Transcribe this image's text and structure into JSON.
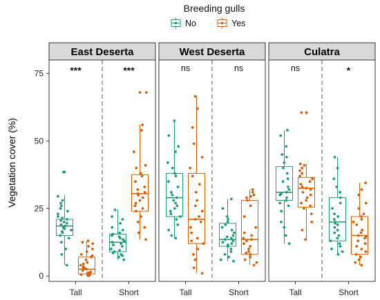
{
  "chart_data": {
    "type": "boxplot",
    "ylabel": "Vegetation cover (%)",
    "ylim": [
      -2,
      80
    ],
    "yticks": [
      0,
      25,
      50,
      75
    ],
    "categories": [
      "Tall",
      "Short"
    ],
    "legend": {
      "title": "Breeding gulls",
      "position": "top",
      "entries": [
        {
          "label": "No",
          "color": "#1b9e77"
        },
        {
          "label": "Yes",
          "color": "#d95f02"
        }
      ]
    },
    "facets": [
      {
        "name": "East Deserta",
        "groups": [
          {
            "category": "Tall",
            "significance": "***",
            "boxes": [
              {
                "series": "No",
                "min": 4,
                "q1": 15,
                "median": 18.5,
                "q3": 21,
                "max": 30,
                "outliers": [
                  38.5
                ],
                "points": [
                  38.5,
                  29.5,
                  28,
                  27,
                  26,
                  25,
                  24,
                  23,
                  22,
                  21.5,
                  21,
                  20.5,
                  20,
                  19.5,
                  19,
                  18.5,
                  18,
                  17.5,
                  17,
                  16.5,
                  16,
                  15,
                  14,
                  12.5,
                  10,
                  8,
                  4
                ]
              },
              {
                "series": "Yes",
                "min": 0,
                "q1": 0.8,
                "median": 2.5,
                "q3": 7,
                "max": 13,
                "outliers": [],
                "points": [
                  13,
                  12.5,
                  12,
                  11,
                  10,
                  9,
                  8,
                  7.5,
                  7,
                  6,
                  5,
                  4.5,
                  4,
                  3.5,
                  3,
                  2.8,
                  2.5,
                  2,
                  1.5,
                  1.2,
                  1,
                  0.8,
                  0.5,
                  0.3,
                  0.1
                ]
              }
            ]
          },
          {
            "category": "Short",
            "significance": "***",
            "boxes": [
              {
                "series": "No",
                "min": 6,
                "q1": 9,
                "median": 12.5,
                "q3": 15.5,
                "max": 24.5,
                "outliers": [],
                "points": [
                  24.5,
                  22,
                  21,
                  19.5,
                  18,
                  17,
                  16,
                  15.5,
                  15,
                  14.5,
                  14,
                  13.5,
                  13,
                  12.5,
                  12,
                  11.5,
                  11,
                  10,
                  9.5,
                  9,
                  8.5,
                  8,
                  7.5,
                  7,
                  6
                ]
              },
              {
                "series": "Yes",
                "min": 13.5,
                "q1": 24,
                "median": 30.5,
                "q3": 37.5,
                "max": 56,
                "outliers": [
                  68
                ],
                "points": [
                  68,
                  56,
                  54,
                  46,
                  41,
                  40,
                  38,
                  37,
                  35,
                  33,
                  32,
                  31,
                  30.5,
                  30,
                  29,
                  28,
                  27,
                  26,
                  25,
                  24,
                  22,
                  20,
                  18,
                  16,
                  13.5
                ]
              }
            ]
          }
        ]
      },
      {
        "name": "West Deserta",
        "groups": [
          {
            "category": "Tall",
            "significance": "ns",
            "boxes": [
              {
                "series": "No",
                "min": 14,
                "q1": 22,
                "median": 29,
                "q3": 38,
                "max": 57.5,
                "outliers": [],
                "points": [
                  57.5,
                  52,
                  48,
                  46,
                  42,
                  40,
                  38,
                  37,
                  35,
                  33,
                  31,
                  30,
                  29,
                  28,
                  27,
                  26,
                  25,
                  24,
                  23,
                  22,
                  21,
                  19,
                  17,
                  15,
                  14
                ]
              },
              {
                "series": "Yes",
                "min": 1,
                "q1": 12,
                "median": 21,
                "q3": 38,
                "max": 66.5,
                "outliers": [],
                "points": [
                  66.5,
                  62,
                  55,
                  49,
                  44,
                  40,
                  37,
                  34,
                  31,
                  28,
                  26,
                  24,
                  22,
                  21,
                  20,
                  18,
                  16,
                  14,
                  13,
                  12,
                  10,
                  8,
                  6,
                  3,
                  1
                ]
              }
            ]
          },
          {
            "category": "Short",
            "significance": "ns",
            "boxes": [
              {
                "series": "No",
                "min": 5.5,
                "q1": 11,
                "median": 13.5,
                "q3": 19.5,
                "max": 28.5,
                "outliers": [],
                "points": [
                  28.5,
                  25,
                  22,
                  21,
                  20,
                  19,
                  18,
                  17,
                  16,
                  15,
                  14.5,
                  14,
                  13.5,
                  13,
                  12.5,
                  12,
                  11.5,
                  11,
                  10,
                  9,
                  8,
                  7,
                  6,
                  5.5
                ]
              },
              {
                "series": "Yes",
                "min": 4,
                "q1": 8,
                "median": 13.5,
                "q3": 28,
                "max": 32,
                "outliers": [],
                "points": [
                  32,
                  31,
                  30,
                  29.5,
                  29,
                  28,
                  26,
                  22,
                  18,
                  16,
                  15,
                  14,
                  13.5,
                  13,
                  12,
                  11,
                  10,
                  9,
                  8.5,
                  8,
                  7,
                  6,
                  5,
                  4
                ]
              }
            ]
          }
        ]
      },
      {
        "name": "Culatra",
        "groups": [
          {
            "category": "Tall",
            "significance": "ns",
            "boxes": [
              {
                "series": "No",
                "min": 12,
                "q1": 28,
                "median": 31,
                "q3": 40.5,
                "max": 54,
                "outliers": [],
                "points": [
                  54,
                  52,
                  48,
                  45,
                  44,
                  42,
                  40,
                  38,
                  36,
                  35,
                  33,
                  32,
                  31,
                  30.5,
                  30,
                  29,
                  28,
                  27,
                  26,
                  24,
                  20,
                  18,
                  15,
                  12
                ]
              },
              {
                "series": "Yes",
                "min": 13.5,
                "q1": 25.5,
                "median": 32.5,
                "q3": 36.5,
                "max": 41.5,
                "outliers": [
                  60.5
                ],
                "points": [
                  60.5,
                  41.5,
                  41,
                  40,
                  39,
                  38,
                  37,
                  36,
                  35,
                  34,
                  33,
                  32.5,
                  32,
                  31,
                  30,
                  29,
                  28,
                  27,
                  26,
                  25,
                  23,
                  20,
                  17,
                  13.5
                ]
              }
            ]
          },
          {
            "category": "Short",
            "significance": "*",
            "boxes": [
              {
                "series": "No",
                "min": 8,
                "q1": 13,
                "median": 20,
                "q3": 29,
                "max": 44,
                "outliers": [],
                "points": [
                  44,
                  40,
                  36,
                  33,
                  31,
                  29,
                  27,
                  25,
                  23,
                  22,
                  21,
                  20,
                  19.5,
                  19,
                  18,
                  17,
                  16,
                  15,
                  14,
                  13,
                  12,
                  11,
                  10,
                  9,
                  8
                ]
              },
              {
                "series": "Yes",
                "min": 4,
                "q1": 8,
                "median": 15,
                "q3": 22,
                "max": 34.5,
                "outliers": [],
                "points": [
                  34.5,
                  32,
                  30,
                  27,
                  25,
                  23,
                  22,
                  21,
                  20,
                  19,
                  17,
                  16,
                  15,
                  14.5,
                  14,
                  13,
                  12,
                  11,
                  10,
                  9,
                  8,
                  7,
                  6,
                  5,
                  4
                ]
              }
            ]
          }
        ]
      }
    ]
  }
}
